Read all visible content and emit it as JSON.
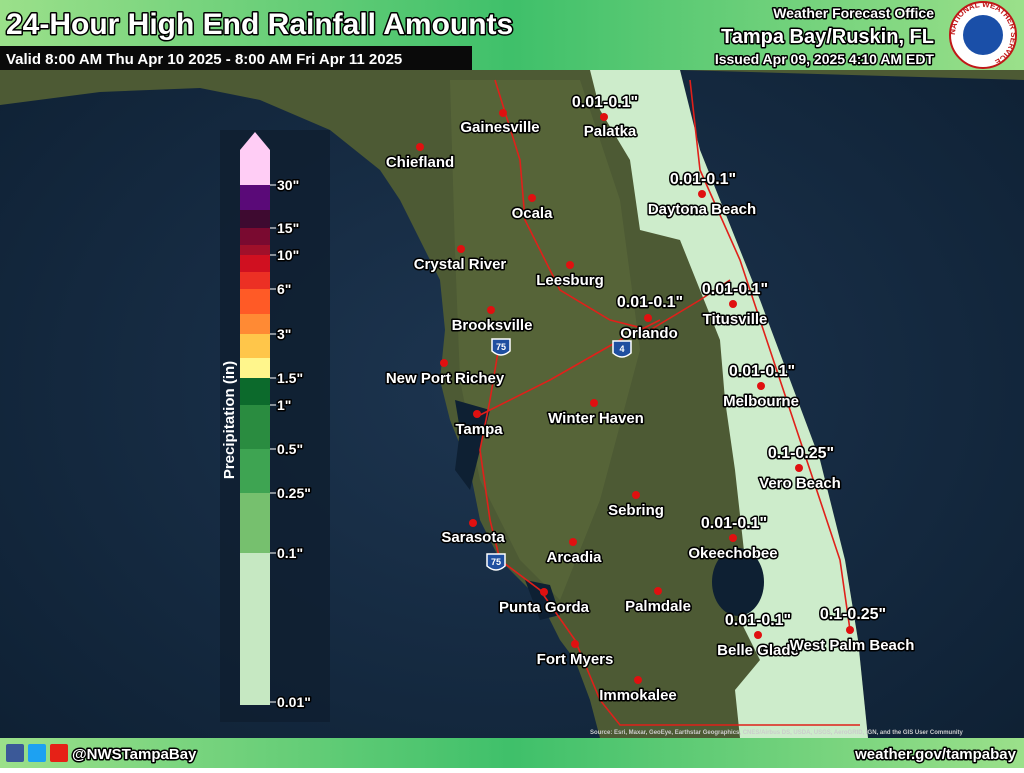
{
  "header": {
    "title": "24-Hour High End Rainfall Amounts",
    "valid": "Valid 8:00 AM Thu Apr 10 2025 - 8:00 AM Fri Apr 11 2025",
    "office_line": "Weather Forecast Office",
    "office": "Tampa Bay/Ruskin, FL",
    "issued": "Issued Apr 09, 2025 4:10 AM EDT",
    "logo": "NATIONAL WEATHER SERVICE"
  },
  "legend": {
    "title": "Precipitation (in)",
    "labels": [
      "30\"",
      "15\"",
      "10\"",
      "6\"",
      "3\"",
      "1.5\"",
      "1\"",
      "0.5\"",
      "0.25\"",
      "0.1\"",
      "0.01\""
    ],
    "colors": [
      "#ffcdf5",
      "#5a0a78",
      "#3e0a30",
      "#7a0a30",
      "#a0102a",
      "#d01020",
      "#ec3024",
      "#ff5a26",
      "#ff8a34",
      "#ffc64a",
      "#fff68c",
      "#0c6a2c",
      "#2a8c40",
      "#3ea452",
      "#76c06e",
      "#c6e8c2"
    ]
  },
  "cities": [
    "Gainesville",
    "Palatka",
    "Chiefland",
    "Ocala",
    "Daytona Beach",
    "Crystal River",
    "Leesburg",
    "Titusville",
    "Orlando",
    "Brooksville",
    "New Port Richey",
    "Melbourne",
    "Winter Haven",
    "Tampa",
    "Vero Beach",
    "Sebring",
    "Okeechobee",
    "Sarasota",
    "Arcadia",
    "Palmdale",
    "Punta Gorda",
    "Belle Glade",
    "West Palm Beach",
    "Fort Myers",
    "Immokalee"
  ],
  "rainfall_labels": [
    "0.01-0.1\"",
    "0.01-0.1\"",
    "0.01-0.1\"",
    "0.01-0.1\"",
    "0.01-0.1\"",
    "0.1-0.25\"",
    "0.01-0.1\"",
    "0.01-0.1\"",
    "0.1-0.25\""
  ],
  "shields": [
    "75",
    "4",
    "75"
  ],
  "attribution": "Source: Esri, Maxar, GeoEye, Earthstar Geographics, CNES/Airbus DS, USDA, USGS, AeroGRID, IGN, and the GIS User Community",
  "footer": {
    "social": "@NWSTampaBay",
    "website": "weather.gov/tampabay"
  }
}
